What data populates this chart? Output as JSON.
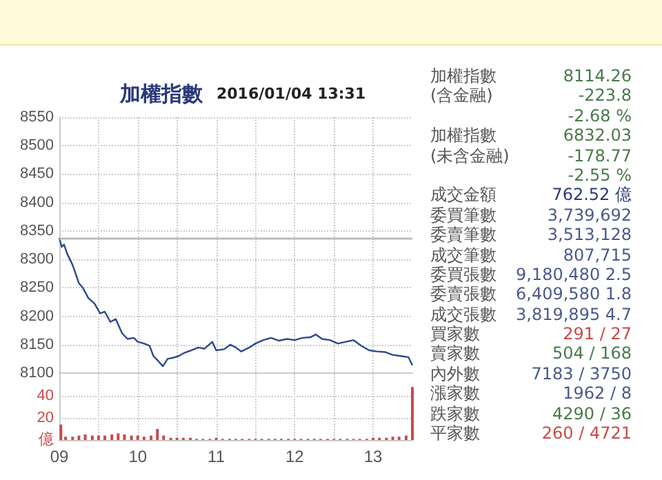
{
  "chart_data": [
    {
      "type": "line",
      "title": "加權指數",
      "subtitle": "2016/01/04 13:31",
      "marker": "none",
      "grid": true,
      "tick_labels": "y",
      "xlim": [
        9,
        13.5
      ],
      "xticks": [
        {
          "value": 9,
          "label": null
        },
        {
          "value": 9.5,
          "label": null
        },
        {
          "value": 10,
          "label": null
        },
        {
          "value": 10.5,
          "label": null
        },
        {
          "value": 11,
          "label": null
        },
        {
          "value": 11.5,
          "label": null
        },
        {
          "value": 12,
          "label": null
        },
        {
          "value": 12.5,
          "label": null
        },
        {
          "value": 13,
          "label": null
        }
      ],
      "ylim": [
        8100,
        8550
      ],
      "yticks": [
        8100,
        8150,
        8200,
        8250,
        8300,
        8350,
        8400,
        8450,
        8500,
        8550
      ],
      "ref_lines": [
        {
          "axis": "y",
          "value": 8338,
          "label": null,
          "color": "#b8bcc4"
        }
      ],
      "series": [
        {
          "color": "#2b4a8a",
          "x": [
            9.0,
            9.03,
            9.06,
            9.1,
            9.17,
            9.25,
            9.3,
            9.37,
            9.45,
            9.52,
            9.58,
            9.65,
            9.72,
            9.8,
            9.87,
            9.95,
            10.0,
            10.08,
            10.15,
            10.2,
            10.25,
            10.32,
            10.38,
            10.45,
            10.52,
            10.6,
            10.68,
            10.77,
            10.85,
            10.95,
            11.0,
            11.1,
            11.18,
            11.25,
            11.32,
            11.42,
            11.5,
            11.6,
            11.7,
            11.8,
            11.9,
            12.0,
            12.1,
            12.2,
            12.27,
            12.35,
            12.45,
            12.55,
            12.65,
            12.75,
            12.85,
            12.95,
            13.05,
            13.15,
            13.25,
            13.35,
            13.45,
            13.5
          ],
          "values": [
            8338,
            8322,
            8326,
            8310,
            8290,
            8258,
            8250,
            8232,
            8222,
            8205,
            8208,
            8190,
            8195,
            8170,
            8160,
            8162,
            8155,
            8152,
            8148,
            8130,
            8123,
            8112,
            8125,
            8127,
            8130,
            8136,
            8140,
            8145,
            8143,
            8155,
            8140,
            8142,
            8150,
            8145,
            8138,
            8145,
            8152,
            8158,
            8162,
            8157,
            8160,
            8158,
            8162,
            8163,
            8168,
            8160,
            8158,
            8152,
            8155,
            8158,
            8148,
            8140,
            8138,
            8137,
            8132,
            8130,
            8128,
            8114
          ]
        }
      ]
    },
    {
      "type": "bar",
      "grid": true,
      "xlim": [
        9,
        13.5
      ],
      "xticks": [
        {
          "value": 9,
          "label": "09"
        },
        {
          "value": 9.5,
          "label": null
        },
        {
          "value": 10,
          "label": "10"
        },
        {
          "value": 10.5,
          "label": null
        },
        {
          "value": 11,
          "label": "11"
        },
        {
          "value": 11.5,
          "label": null
        },
        {
          "value": 12,
          "label": "12"
        },
        {
          "value": 12.5,
          "label": null
        },
        {
          "value": 13,
          "label": "13"
        }
      ],
      "ylim": [
        0,
        60
      ],
      "yticks": [
        {
          "value": 0,
          "label": "億"
        },
        20,
        40
      ],
      "series": [
        {
          "color": "#c94a4a",
          "x": [
            9.02,
            9.08,
            9.17,
            9.25,
            9.33,
            9.42,
            9.5,
            9.58,
            9.67,
            9.75,
            9.83,
            9.92,
            10.0,
            10.08,
            10.17,
            10.25,
            10.33,
            10.42,
            10.5,
            10.58,
            10.67,
            10.75,
            10.83,
            10.92,
            11.0,
            11.08,
            11.17,
            11.25,
            11.33,
            11.42,
            11.5,
            11.58,
            11.67,
            11.75,
            11.83,
            11.92,
            12.0,
            12.08,
            12.17,
            12.25,
            12.33,
            12.42,
            12.5,
            12.58,
            12.67,
            12.75,
            12.83,
            12.92,
            13.0,
            13.08,
            13.17,
            13.25,
            13.33,
            13.42,
            13.5
          ],
          "values": [
            14,
            3,
            3,
            4,
            5,
            4,
            4,
            4,
            5,
            6,
            5,
            4,
            4,
            3,
            4,
            10,
            4,
            2,
            2,
            2,
            2,
            1,
            1,
            1,
            2,
            1,
            1,
            1,
            1,
            1,
            1,
            1,
            1,
            1,
            1,
            1,
            1,
            1,
            1,
            1,
            1,
            1,
            1,
            1,
            1,
            1,
            1,
            1,
            2,
            2,
            2,
            3,
            3,
            4,
            48
          ]
        }
      ]
    },
    {
      "type": "other",
      "categories": [
        "加權指數",
        "(含金融)",
        null,
        "加權指數",
        "(未含金融)",
        null,
        "成交金額",
        "委買筆數",
        "委賣筆數",
        "成交筆數",
        "委買張數",
        "委賣張數",
        "成交張數",
        "買家數",
        "賣家數",
        "內外數",
        "漲家數",
        "跌家數",
        "平家數"
      ],
      "value_labels": [
        "8114.26",
        "-223.8",
        "-2.68 %",
        "6832.03",
        "-178.77",
        "-2.55 %",
        "762.52 億",
        "3,739,692",
        "3,513,128",
        "807,715",
        "9,180,480 2.5",
        "6,409,580 1.8",
        "3,819,895 4.7",
        "291 / 27",
        "504 / 168",
        "7183 / 3750",
        "1962 / 8",
        "4290 / 36",
        "260 / 4721"
      ],
      "colors": [
        "#4a7a4a",
        "#4a7a4a",
        "#4a7a4a",
        "#4a7a4a",
        "#4a7a4a",
        "#4a7a4a",
        "#2b3a7a",
        "#4a5a8a",
        "#4a5a8a",
        "#4a5a8a",
        "#4a5a8a",
        "#4a5a8a",
        "#4a5a8a",
        "#c94a4a",
        "#4a7a4a",
        "#4a5a8a",
        "#4a5a8a",
        "#4a7a4a",
        "#c94a4a"
      ]
    }
  ]
}
